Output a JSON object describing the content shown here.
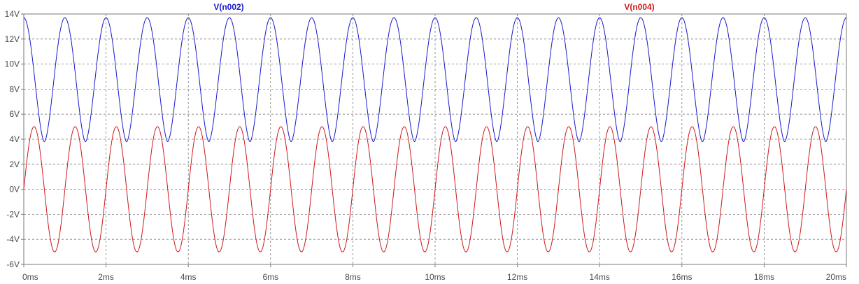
{
  "chart_data": {
    "type": "line",
    "title": "",
    "xlabel": "",
    "ylabel": "",
    "xlim": [
      0,
      20
    ],
    "ylim": [
      -6,
      14
    ],
    "grid": true,
    "legend_placement": "top",
    "x_ticks": [
      "0ms",
      "2ms",
      "4ms",
      "6ms",
      "8ms",
      "10ms",
      "12ms",
      "14ms",
      "16ms",
      "18ms",
      "20ms"
    ],
    "x_tick_values": [
      0,
      2,
      4,
      6,
      8,
      10,
      12,
      14,
      16,
      18,
      20
    ],
    "y_ticks": [
      "-6V",
      "-4V",
      "-2V",
      "0V",
      "2V",
      "4V",
      "6V",
      "8V",
      "10V",
      "12V",
      "14V"
    ],
    "y_tick_values": [
      -6,
      -4,
      -2,
      0,
      2,
      4,
      6,
      8,
      10,
      12,
      14
    ],
    "series": [
      {
        "name": "V(n002)",
        "color": "#1a1acc",
        "shape": "rectified-sine",
        "x_range_ms": [
          0,
          20
        ],
        "frequency_hz": 1000,
        "peak_times_ms": [
          0,
          1,
          2,
          3,
          4,
          5,
          6,
          7,
          8,
          9,
          10,
          11,
          12,
          13,
          14,
          15,
          16,
          17,
          18,
          19,
          20
        ],
        "peak_v": 13.7,
        "trough_v": 3.8,
        "start_v": 13.7
      },
      {
        "name": "V(n004)",
        "color": "#cc1a1a",
        "shape": "sine",
        "x_range_ms": [
          0,
          20
        ],
        "frequency_hz": 1000,
        "amplitude_v": 5.0,
        "offset_v": 0,
        "peak_times_ms": [
          1.25,
          2.25,
          3.25,
          4.25,
          5.25,
          6.25,
          7.25,
          8.25,
          9.25,
          10.25,
          11.25,
          12.25,
          13.25,
          14.25,
          15.25,
          16.25,
          17.25,
          18.25,
          19.25
        ],
        "start_v": 0
      }
    ]
  }
}
